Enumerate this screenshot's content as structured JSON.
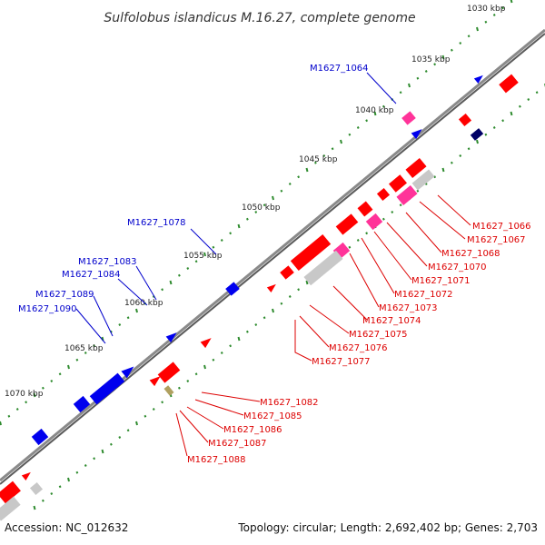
{
  "title": "Sulfolobus islandicus M.16.27, complete genome",
  "accession": "Accession: NC_012632",
  "topology": "Topology: circular; Length: 2,692,402 bp; Genes: 2,703",
  "colors": {
    "backbone": "#8a8a8a",
    "forward_label": "#0000cc",
    "reverse_label": "#dd0000",
    "red_gene": "#ff0000",
    "blue_gene": "#0000ee",
    "pink_gene": "#ff3399",
    "gray_gene": "#c8c8c8",
    "dark_gene": "#000066",
    "olive_gene": "#b0a060",
    "green_tick": "#2e8b2e"
  },
  "kbp_ticks": [
    "1030 kbp",
    "1035 kbp",
    "1040 kbp",
    "1045 kbp",
    "1050 kbp",
    "1055 kbp",
    "1060 kbp",
    "1065 kbp",
    "1070 kbp"
  ],
  "forward_labels": [
    "M1627_1064",
    "M1627_1078",
    "M1627_1083",
    "M1627_1084",
    "M1627_1089",
    "M1627_1090"
  ],
  "reverse_labels": [
    "M1627_1066",
    "M1627_1067",
    "M1627_1068",
    "M1627_1070",
    "M1627_1071",
    "M1627_1072",
    "M1627_1073",
    "M1627_1074",
    "M1627_1075",
    "M1627_1076",
    "M1627_1077",
    "M1627_1082",
    "M1627_1085",
    "M1627_1086",
    "M1627_1087",
    "M1627_1088"
  ]
}
